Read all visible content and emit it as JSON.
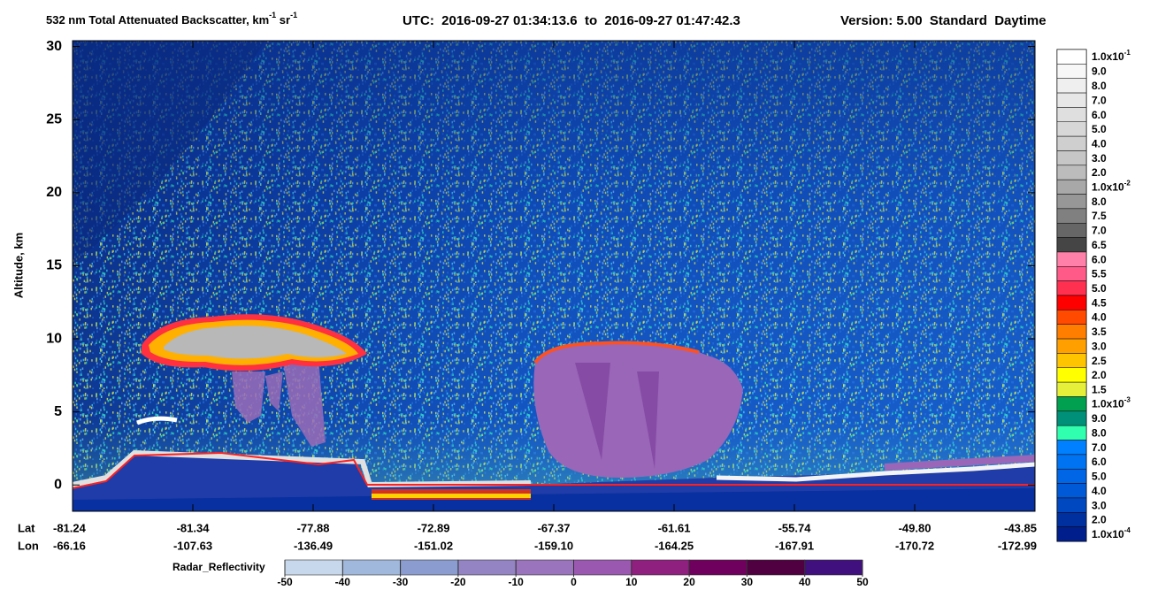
{
  "chart_data": {
    "type": "curtain",
    "title": {
      "text": "532 nm Total Attenuated Backscatter, km",
      "sup1": "-1",
      "mid": " sr",
      "sup2": "-1"
    },
    "time_range": "UTC:  2016-09-27 01:34:13.6  to  2016-09-27 01:47:42.3",
    "version": "Version: 5.00  Standard  Daytime",
    "ylabel": "Altitude, km",
    "ylim": [
      -1.8,
      30.4
    ],
    "yticks": [
      0,
      5,
      10,
      15,
      20,
      25,
      30
    ],
    "x_labels": [
      "Lat",
      "Lon"
    ],
    "lat": [
      -81.24,
      -81.34,
      -77.88,
      -72.89,
      -67.37,
      -61.61,
      -55.74,
      {
        "value": -49.8,
        "label": "-49.80"
      },
      -43.85
    ],
    "lon": [
      -66.16,
      -107.63,
      -136.49,
      -151.02,
      {
        "value": -159.1,
        "label": "-159.10"
      },
      -164.25,
      -167.91,
      -170.72,
      -172.99
    ],
    "colorbar": {
      "labels": [
        {
          "text": "1.0x10",
          "sup": "-1"
        },
        "9.0",
        "8.0",
        "7.0",
        "6.0",
        "5.0",
        "4.0",
        "3.0",
        "2.0",
        {
          "text": "1.0x10",
          "sup": "-2"
        },
        "8.0",
        "7.5",
        "7.0",
        "6.5",
        "6.0",
        "5.5",
        "5.0",
        "4.5",
        "4.0",
        "3.5",
        "3.0",
        "2.5",
        "2.0",
        "1.5",
        {
          "text": "1.0x10",
          "sup": "-3"
        },
        "9.0",
        "8.0",
        "7.0",
        "6.0",
        "5.0",
        "4.0",
        "3.0",
        "2.0",
        {
          "text": "1.0x10",
          "sup": "-4"
        }
      ],
      "colors": [
        "#ffffff",
        "#f7f7f7",
        "#efefef",
        "#e7e7e7",
        "#dfdfdf",
        "#d7d7d7",
        "#cfcfcf",
        "#c6c6c6",
        "#bcbcbc",
        "#a8a8a8",
        "#979797",
        "#808080",
        "#666666",
        "#454545",
        "#ff80a8",
        "#ff5a88",
        "#ff3050",
        "#ff0000",
        "#ff4a00",
        "#ff7e00",
        "#ffa000",
        "#ffc400",
        "#ffff00",
        "#e6f03a",
        "#00a050",
        "#00907a",
        "#30ffb0",
        "#0080ff",
        "#0073f2",
        "#0066e6",
        "#005ad8",
        "#0048c0",
        "#0030a0",
        "#001f8c"
      ]
    },
    "radar_colorbar": {
      "label": "Radar_Reflectivity",
      "ticks": [
        -50,
        -40,
        -30,
        -20,
        -10,
        0,
        10,
        20,
        30,
        40,
        50
      ],
      "colors": [
        "#c8d8ec",
        "#a0b8dc",
        "#8a9cd0",
        "#9484c4",
        "#9a74bc",
        "#9a58b0",
        "#902080",
        "#70005e",
        "#500040",
        "#40107e"
      ]
    }
  }
}
